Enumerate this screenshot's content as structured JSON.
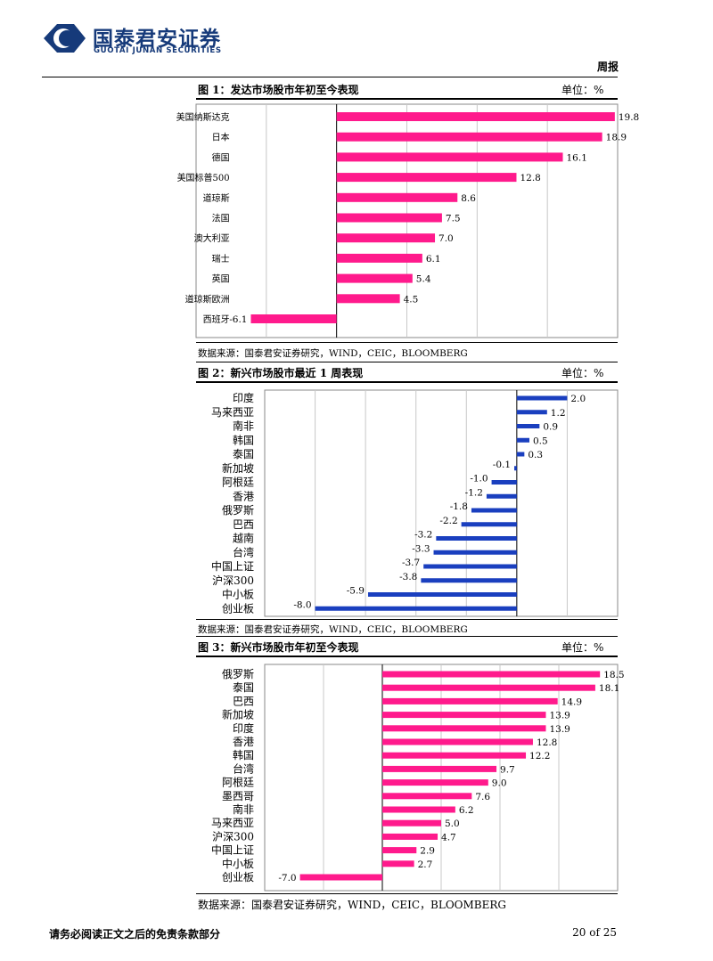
{
  "header": {
    "company_cn": "国泰君安证券",
    "company_en": "GUOTAI JUNAN SECURITIES",
    "report_type": "周报"
  },
  "colors": {
    "brand": "#163a7a",
    "pink": "#ff1a8c",
    "blue": "#1a3fbf"
  },
  "figures": [
    {
      "title": "图 1：发达市场股市年初至今表现",
      "unit": "单位：%",
      "source": "数据来源：国泰君安证券研究，WIND，CEIC，BLOOMBERG"
    },
    {
      "title": "图 2：新兴市场股市最近 1 周表现",
      "unit": "单位：%",
      "source": "数据来源：国泰君安证券研究，WIND，CEIC，BLOOMBERG"
    },
    {
      "title": "图 3：新兴市场股市年初至今表现",
      "unit": "单位：%",
      "source": "数据来源：国泰君安证券研究，WIND，CEIC，BLOOMBERG"
    }
  ],
  "chart_data": [
    {
      "type": "bar",
      "orientation": "horizontal",
      "categories": [
        "美国纳斯达克",
        "日本",
        "德国",
        "美国标普500",
        "道琼斯",
        "法国",
        "澳大利亚",
        "瑞士",
        "英国",
        "道琼斯欧洲",
        "西班牙"
      ],
      "values": [
        19.8,
        18.9,
        16.1,
        12.8,
        8.6,
        7.5,
        7.0,
        6.1,
        5.4,
        4.5,
        -6.1
      ],
      "labels": [
        "19.8",
        "18.9",
        "16.1",
        "12.8",
        "8.6",
        "7.5",
        "7.0",
        "6.1",
        "5.4",
        "4.5",
        "-6.1"
      ],
      "xlim": [
        -10,
        20
      ],
      "color": "#ff1a8c",
      "grid": true
    },
    {
      "type": "bar",
      "orientation": "horizontal",
      "categories": [
        "印度",
        "马来西亚",
        "南非",
        "韩国",
        "泰国",
        "新加坡",
        "阿根廷",
        "香港",
        "俄罗斯",
        "巴西",
        "越南",
        "台湾",
        "中国上证",
        "沪深300",
        "中小板",
        "创业板"
      ],
      "values": [
        2.0,
        1.2,
        0.9,
        0.5,
        0.3,
        -0.1,
        -1.0,
        -1.2,
        -1.8,
        -2.2,
        -3.2,
        -3.3,
        -3.7,
        -3.8,
        -5.9,
        -8.0
      ],
      "labels": [
        "2.0",
        "1.2",
        "0.9",
        "0.5",
        "0.3",
        "-0.1",
        "-1.0",
        "-1.2",
        "-1.8",
        "-2.2",
        "-3.2",
        "-3.3",
        "-3.7",
        "-3.8",
        "-5.9",
        "-8.0"
      ],
      "xlim": [
        -10,
        4
      ],
      "color": "#1a3fbf",
      "grid": true
    },
    {
      "type": "bar",
      "orientation": "horizontal",
      "categories": [
        "俄罗斯",
        "泰国",
        "巴西",
        "新加坡",
        "印度",
        "香港",
        "韩国",
        "台湾",
        "阿根廷",
        "墨西哥",
        "南非",
        "马来西亚",
        "沪深300",
        "中国上证",
        "中小板",
        "创业板"
      ],
      "values": [
        18.5,
        18.1,
        14.9,
        13.9,
        13.9,
        12.8,
        12.2,
        9.7,
        9.0,
        7.6,
        6.2,
        5.0,
        4.7,
        2.9,
        2.7,
        -7.0
      ],
      "labels": [
        "18.5",
        "18.1",
        "14.9",
        "13.9",
        "13.9",
        "12.8",
        "12.2",
        "9.7",
        "9.0",
        "7.6",
        "6.2",
        "5.0",
        "4.7",
        "2.9",
        "2.7",
        "-7.0"
      ],
      "xlim": [
        -10,
        20
      ],
      "color": "#ff1a8c",
      "grid": true
    }
  ],
  "footer": {
    "disclaimer": "请务必阅读正文之后的免责条款部分",
    "page": "20 of 25"
  }
}
